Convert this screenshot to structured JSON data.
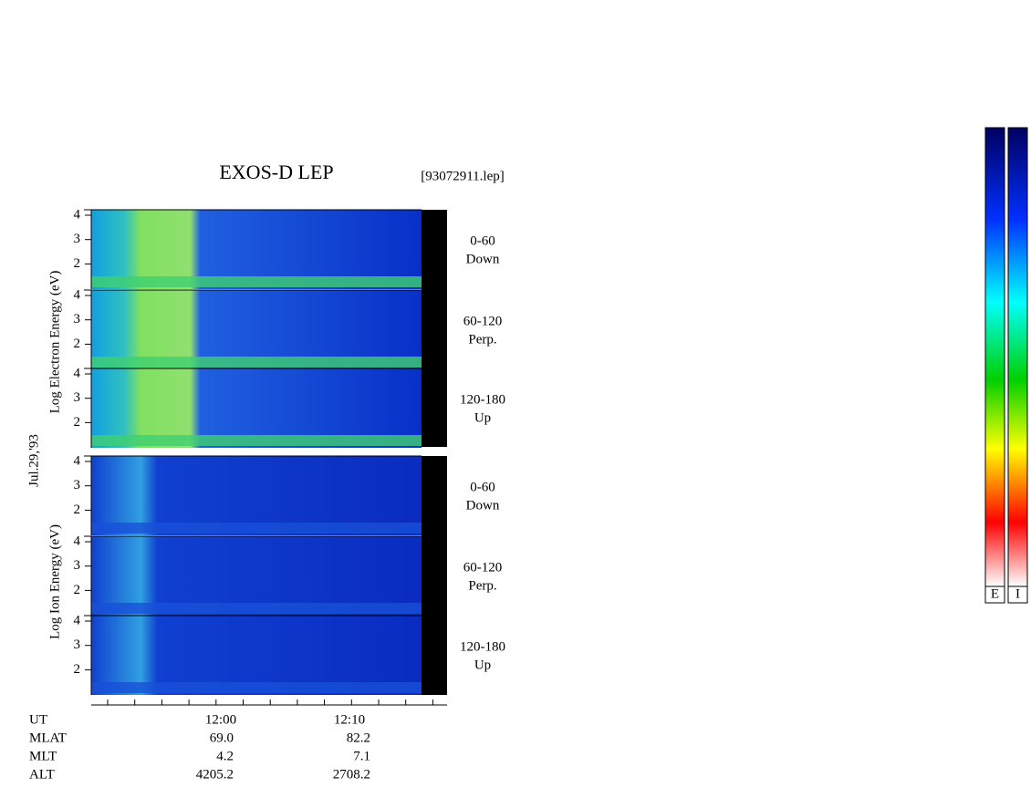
{
  "title": "EXOS-D LEP",
  "file": "[93072911.lep]",
  "date": "Jul.29,'93",
  "electron_axis_label": "Log Electron Energy (eV)",
  "ion_axis_label": "Log Ion Energy (eV)",
  "panel_ticks": [
    4,
    3,
    2
  ],
  "electron_panels": [
    {
      "label": "0-60",
      "sub": "Down"
    },
    {
      "label": "60-120",
      "sub": "Perp."
    },
    {
      "label": "120-180",
      "sub": "Up"
    }
  ],
  "ion_panels": [
    {
      "label": "0-60",
      "sub": "Down"
    },
    {
      "label": "60-120",
      "sub": "Perp."
    },
    {
      "label": "120-180",
      "sub": "Up"
    }
  ],
  "time_ticks": [
    "12:00",
    "12:10"
  ],
  "footer": [
    {
      "name": "UT"
    },
    {
      "name": "MLAT",
      "values": [
        "69.0",
        "82.2"
      ]
    },
    {
      "name": "MLT",
      "values": [
        "4.2",
        "7.1"
      ]
    },
    {
      "name": "ALT",
      "values": [
        "4205.2",
        "2708.2"
      ]
    }
  ],
  "colorbar_labels": [
    "E",
    "I"
  ]
}
